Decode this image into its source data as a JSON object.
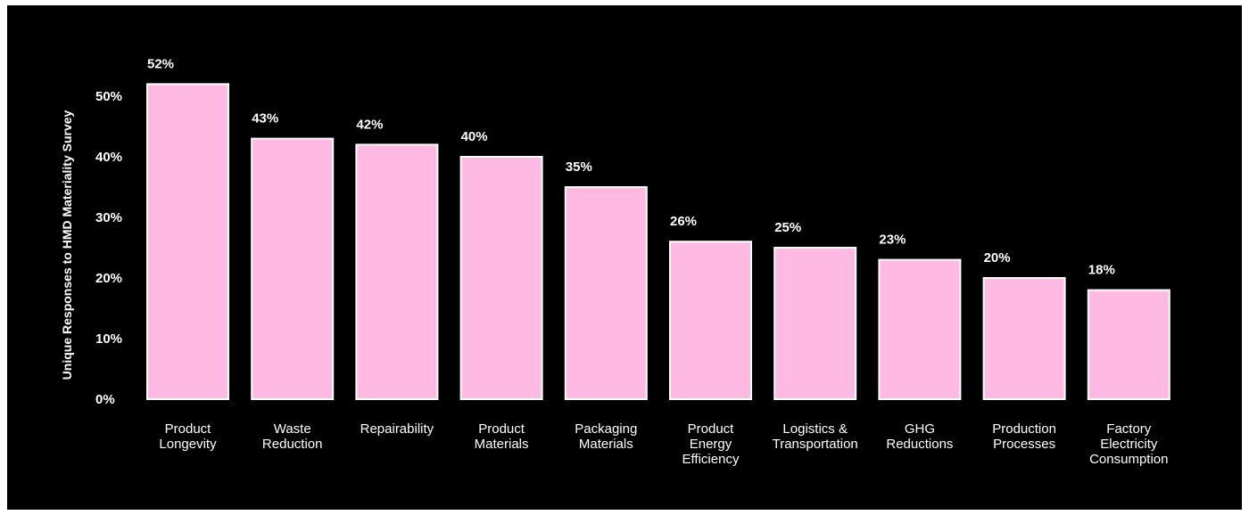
{
  "chart_data": {
    "type": "bar",
    "categories": [
      [
        "Product",
        "Longevity"
      ],
      [
        "Waste",
        "Reduction"
      ],
      [
        "Repairability"
      ],
      [
        "Product",
        "Materials"
      ],
      [
        "Packaging",
        "Materials"
      ],
      [
        "Product",
        "Energy",
        "Efficiency"
      ],
      [
        "Logistics &",
        "Transportation"
      ],
      [
        "GHG",
        "Reductions"
      ],
      [
        "Production",
        "Processes"
      ],
      [
        "Factory",
        "Electricity",
        "Consumption"
      ]
    ],
    "values": [
      52,
      43,
      42,
      40,
      35,
      26,
      25,
      23,
      20,
      18
    ],
    "value_labels": [
      "52%",
      "43%",
      "42%",
      "40%",
      "35%",
      "26%",
      "25%",
      "23%",
      "20%",
      "18%"
    ],
    "title": "",
    "xlabel": "",
    "ylabel": "Unique Responses to HMD Materiality Survey",
    "ylim": [
      0,
      50
    ],
    "yticks": [
      0,
      10,
      20,
      30,
      40,
      50
    ],
    "ytick_labels": [
      "0%",
      "10%",
      "20%",
      "30%",
      "40%",
      "50%"
    ],
    "grid": false,
    "legend": "none",
    "colors": {
      "background": "#000000",
      "bar_fill": "#FFBAE3",
      "bar_outline": "#FFFFFF",
      "text": "#FFFFFF"
    }
  }
}
